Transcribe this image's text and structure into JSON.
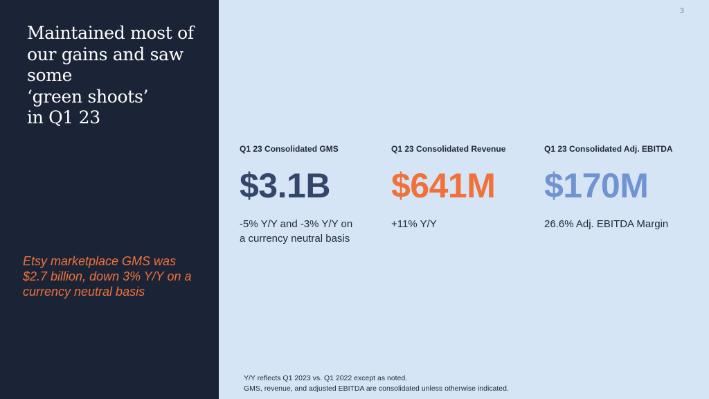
{
  "slide": {
    "page_number": "3",
    "headline": "Maintained most of\nour gains and saw\nsome\n‘green shoots’\nin Q1 23",
    "callout": "Etsy marketplace GMS was\n$2.7 billion, down 3% Y/Y on a\ncurrency neutral basis"
  },
  "metrics": [
    {
      "label": "Q1 23 Consolidated GMS",
      "value": "$3.1B",
      "note": "-5% Y/Y and -3% Y/Y on\na currency neutral basis",
      "color": "#34476b"
    },
    {
      "label": "Q1 23 Consolidated Revenue",
      "value": "$641M",
      "note": "+11% Y/Y",
      "color": "#f0713a"
    },
    {
      "label": "Q1 23 Consolidated Adj. EBITDA",
      "value": "$170M",
      "note": "26.6% Adj. EBITDA Margin",
      "color": "#7293d2"
    }
  ],
  "footnotes": [
    "Y/Y reflects Q1 2023 vs. Q1 2022 except as noted.",
    "GMS, revenue, and adjusted EBITDA are consolidated unless otherwise indicated."
  ],
  "colors": {
    "left_panel": "#1b2437",
    "background": "#d6e5f5",
    "accent_orange": "#f0713a"
  }
}
